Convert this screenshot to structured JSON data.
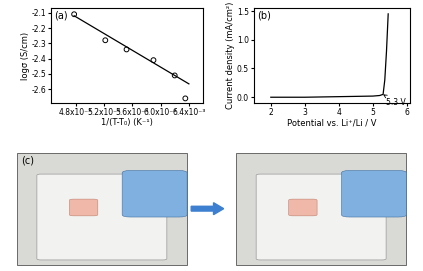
{
  "chart_data": [
    {
      "type": "scatter",
      "title": "(a)",
      "x_label": "1/(T-T₀) (K⁻¹)",
      "y_label": "logσ (S/cm)",
      "series": [
        {
          "type": "scatter",
          "marker": "o",
          "color": "#000000",
          "x": [
            0.00478,
            0.00522,
            0.00552,
            0.0059,
            0.0062,
            0.00635
          ],
          "values": [
            -2.11,
            -2.28,
            -2.34,
            -2.41,
            -2.51,
            -2.66
          ]
        },
        {
          "type": "line",
          "line_style": "solid",
          "color": "#000000",
          "x": [
            0.00478,
            0.0064
          ],
          "values": [
            -2.12,
            -2.565
          ]
        }
      ],
      "xlim": [
        0.00445,
        0.0066
      ],
      "ylim": [
        -2.69,
        -2.07
      ],
      "xticks": [
        {
          "value": 0.0048,
          "label": "4.8x10⁻³"
        },
        {
          "value": 0.0052,
          "label": "5.2x10⁻³"
        },
        {
          "value": 0.0056,
          "label": "5.6x10⁻³"
        },
        {
          "value": 0.006,
          "label": "6.0x10⁻³"
        },
        {
          "value": 0.0064,
          "label": "6.4x10⁻³"
        }
      ],
      "yticks": [
        -2.6,
        -2.5,
        -2.4,
        -2.3,
        -2.2,
        -2.1
      ]
    },
    {
      "type": "line",
      "title": "(b)",
      "x_label": "Potential vs. Li⁺/Li / V",
      "y_label": "Current density (mA/cm²)",
      "series": [
        {
          "type": "line",
          "line_style": "solid",
          "color": "#000000",
          "x": [
            2.0,
            2.5,
            3.0,
            3.5,
            4.0,
            4.5,
            5.0,
            5.2,
            5.3,
            5.35,
            5.4,
            5.45
          ],
          "values": [
            0.0,
            0.0,
            0.0,
            0.005,
            0.01,
            0.015,
            0.02,
            0.03,
            0.05,
            0.3,
            0.8,
            1.45
          ]
        }
      ],
      "annotations": [
        {
          "text": "5.3 V",
          "x": 5.3,
          "y": 0.05
        }
      ],
      "xlim": [
        1.5,
        6.1
      ],
      "ylim": [
        -0.1,
        1.55
      ],
      "xticks": [
        2,
        3,
        4,
        5,
        6
      ],
      "yticks": [
        0.0,
        0.5,
        1.0,
        1.5
      ]
    }
  ],
  "photos": {
    "label": "(c)"
  }
}
